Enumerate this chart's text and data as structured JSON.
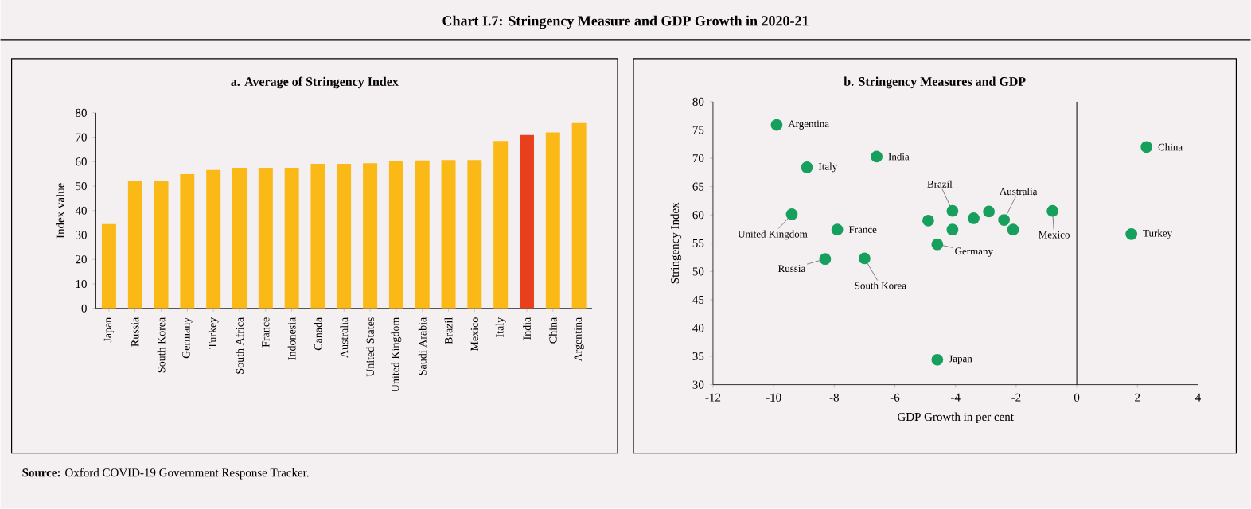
{
  "chart_data": [
    {
      "type": "bar",
      "title": "Chart I.7: Stringency Measure and GDP Growth in 2020-21",
      "subtitle": "a. Average of Stringency Index",
      "ylabel": "Index value",
      "categories": [
        "Japan",
        "Russia",
        "South Korea",
        "Germany",
        "Turkey",
        "South Africa",
        "France",
        "Indonesia",
        "Canada",
        "Australia",
        "United States",
        "United Kingdom",
        "Saudi Arabia",
        "Brazil",
        "Mexico",
        "Italy",
        "India",
        "China",
        "Argentina"
      ],
      "values": [
        34.5,
        52.3,
        52.3,
        54.9,
        56.6,
        57.5,
        57.5,
        57.5,
        59.1,
        59.1,
        59.4,
        60.1,
        60.5,
        60.7,
        60.7,
        68.5,
        70.9,
        72.0,
        75.9
      ],
      "colors": [
        "#fbb917",
        "#fbb917",
        "#fbb917",
        "#fbb917",
        "#fbb917",
        "#fbb917",
        "#fbb917",
        "#fbb917",
        "#fbb917",
        "#fbb917",
        "#fbb917",
        "#fbb917",
        "#fbb917",
        "#fbb917",
        "#fbb917",
        "#fbb917",
        "#e8401c",
        "#fbb917",
        "#fbb917"
      ],
      "ylim": [
        0,
        80
      ],
      "yticks": [
        0,
        10,
        20,
        30,
        40,
        50,
        60,
        70,
        80
      ],
      "annotations": [
        "**Source:** Oxford COVID-19 Government Response Tracker."
      ]
    },
    {
      "type": "scatter",
      "title": "b. Stringency Measures and GDP",
      "xlabel": "GDP Growth in per cent",
      "ylabel": "Stringency Index",
      "marker": "circle",
      "color": "#17a05d",
      "x": [
        -9.9,
        -6.6,
        -8.9,
        -9.4,
        -7.9,
        -8.3,
        -7.0,
        -4.6,
        -4.6,
        -4.1,
        -4.9,
        -4.1,
        -3.4,
        -2.9,
        -2.4,
        -2.1,
        -0.8,
        1.8,
        2.3
      ],
      "values": [
        75.9,
        70.3,
        68.4,
        60.1,
        57.4,
        52.2,
        52.3,
        34.4,
        54.8,
        60.7,
        59.0,
        57.4,
        59.4,
        60.6,
        59.1,
        57.4,
        60.7,
        56.6,
        72.0
      ],
      "xlim": [
        -12,
        4
      ],
      "xticks": [
        -12,
        -10,
        -8,
        -6,
        -4,
        -2,
        0,
        2,
        4
      ],
      "ylim": [
        30,
        80
      ],
      "yticks": [
        30,
        35,
        40,
        45,
        50,
        55,
        60,
        65,
        70,
        75,
        80
      ],
      "ref_lines": [
        {
          "axis": "x",
          "value": 0
        }
      ],
      "annotations": [
        {
          "text": "Argentina",
          "x": -9.9,
          "y": 75.9
        },
        {
          "text": "India",
          "x": -6.6,
          "y": 70.3
        },
        {
          "text": "Italy",
          "x": -8.9,
          "y": 68.4
        },
        {
          "text": "United Kingdom",
          "x": -9.4,
          "y": 60.1
        },
        {
          "text": "France",
          "x": -7.9,
          "y": 57.4
        },
        {
          "text": "Russia",
          "x": -8.3,
          "y": 52.2
        },
        {
          "text": "South Korea",
          "x": -7.0,
          "y": 52.3
        },
        {
          "text": "Brazil",
          "x": -4.1,
          "y": 60.7
        },
        {
          "text": "Australia",
          "x": -2.4,
          "y": 59.1
        },
        {
          "text": "Mexico",
          "x": -0.8,
          "y": 60.7
        },
        {
          "text": "Germany",
          "x": -4.6,
          "y": 54.8
        },
        {
          "text": "Japan",
          "x": -4.6,
          "y": 34.4
        },
        {
          "text": "China",
          "x": 2.3,
          "y": 72.0
        },
        {
          "text": "Turkey",
          "x": 1.8,
          "y": 56.6
        }
      ]
    }
  ]
}
